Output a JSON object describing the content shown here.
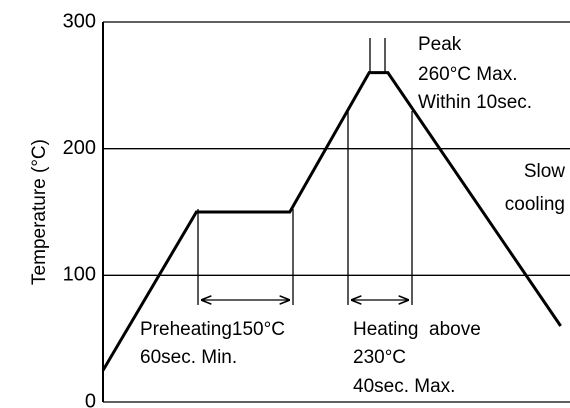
{
  "chart_data": {
    "type": "line",
    "y_label": "Temperature (°C)",
    "x": [
      0,
      20,
      40,
      57,
      61,
      98
    ],
    "values": [
      25,
      150,
      150,
      260,
      260,
      60
    ],
    "color": "#000000",
    "xlim": [
      0,
      100
    ],
    "ylim": [
      0,
      300
    ],
    "yticks": [
      0,
      100,
      200,
      300
    ],
    "grid": true,
    "annotations": [
      "Peak",
      "260°C Max.",
      "Within 10sec.",
      "Slow",
      "cooling",
      "Preheating150°C",
      "60sec. Min.",
      "Heating  above",
      "230°C",
      "40sec. Max."
    ]
  }
}
